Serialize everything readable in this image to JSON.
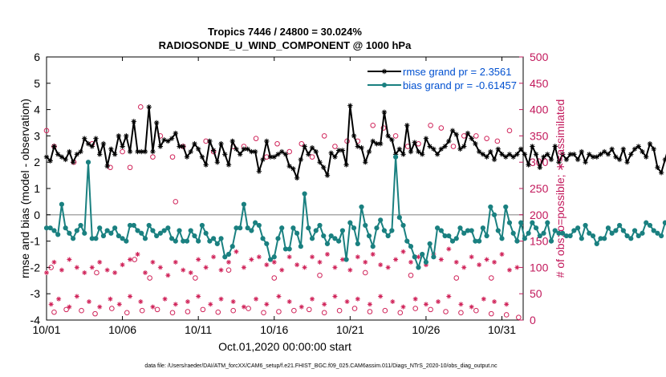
{
  "chart_data": {
    "type": "line",
    "title": "Tropics 7446 / 24800 = 30.024%",
    "subtitle": "RADIOSONDE_U_WIND_COMPONENT @ 1000 hPa",
    "xlabel": "Oct.01,2020 00:00:00 start",
    "ylabel": "rmse and bias (model - observation)",
    "ylabel_right": "# of obs: o=possible; ∗=assimilated",
    "footer": "data file: /Users/raeder/DAI/ATM_forcXX/CAM6_setup/f.e21.FHIST_BGC.f09_025.CAM6assim.011/Diags_NTrS_2020-10/obs_diag_output.nc",
    "xlim": [
      1,
      32.4
    ],
    "ylim": [
      -4,
      6
    ],
    "ylim_right": [
      0,
      500
    ],
    "x_ticks": [
      1,
      6,
      11,
      16,
      21,
      26,
      31
    ],
    "x_tick_labels": [
      "10/01",
      "10/06",
      "10/11",
      "10/16",
      "10/21",
      "10/26",
      "10/31"
    ],
    "y_ticks": [
      -4,
      -3,
      -2,
      -1,
      0,
      1,
      2,
      3,
      4,
      5,
      6
    ],
    "y_tick_labels": [
      "-4",
      "-3",
      "-2",
      "-1",
      "0",
      "1",
      "2",
      "3",
      "4",
      "5",
      "6"
    ],
    "y_ticks_right": [
      0,
      50,
      100,
      150,
      200,
      250,
      300,
      350,
      400,
      450,
      500
    ],
    "y_tick_labels_right": [
      "0",
      "50",
      "100",
      "150",
      "200",
      "250",
      "300",
      "350",
      "400",
      "450",
      "500"
    ],
    "zero_line": 0,
    "legend_position": "top-right",
    "x_start": 1,
    "x_step": 0.25,
    "series": [
      {
        "name": "rmse grand pr = 2.3561",
        "color": "#000000",
        "values": [
          2.2,
          2.05,
          2.6,
          2.3,
          2.2,
          2.1,
          2.4,
          2.0,
          2.3,
          2.4,
          2.9,
          2.7,
          2.6,
          2.9,
          2.3,
          2.7,
          1.85,
          2.5,
          2.3,
          3.0,
          2.6,
          3.0,
          2.4,
          3.55,
          2.4,
          2.4,
          2.4,
          4.1,
          2.4,
          3.5,
          2.6,
          2.85,
          2.8,
          2.9,
          3.1,
          2.6,
          2.6,
          2.2,
          2.4,
          2.7,
          2.5,
          2.2,
          1.9,
          2.8,
          2.45,
          2.0,
          2.7,
          2.3,
          1.9,
          2.8,
          2.5,
          2.3,
          2.5,
          2.5,
          2.4,
          2.4,
          1.65,
          2.1,
          2.8,
          2.2,
          2.2,
          2.3,
          2.4,
          2.3,
          1.85,
          1.75,
          1.4,
          2.1,
          2.6,
          2.3,
          2.55,
          2.4,
          2.0,
          1.8,
          1.5,
          2.35,
          2.2,
          2.45,
          2.45,
          1.9,
          4.15,
          3.0,
          2.6,
          2.55,
          2.0,
          2.4,
          2.8,
          2.7,
          2.7,
          3.9,
          3.0,
          2.85,
          2.3,
          2.5,
          2.3,
          3.4,
          2.4,
          2.75,
          2.4,
          2.3,
          2.9,
          2.6,
          2.5,
          2.3,
          2.5,
          2.6,
          2.8,
          3.2,
          3.05,
          2.5,
          2.6,
          3.1,
          2.9,
          2.7,
          2.4,
          2.3,
          2.2,
          2.4,
          2.1,
          2.5,
          2.3,
          2.2,
          2.3,
          2.2,
          2.3,
          2.5,
          2.3,
          1.9,
          2.6,
          2.3,
          1.8,
          2.2,
          2.3,
          2.1,
          2.6,
          2.0,
          2.3,
          2.1,
          2.3,
          2.3,
          2.1,
          2.4,
          2.0,
          2.3,
          2.2,
          2.2,
          2.3,
          2.4,
          2.3,
          2.5,
          2.2,
          2.1,
          2.5,
          2.0,
          2.3,
          2.5,
          2.6,
          2.4,
          2.2,
          2.7,
          2.5,
          1.8,
          1.6,
          2.1,
          2.6,
          2.5,
          1.9,
          2.7,
          2.3,
          4.0,
          2.3,
          2.2,
          2.3,
          2.0,
          1.7,
          2.3,
          2.2,
          2.5,
          2.1,
          3.9,
          2.5,
          2.8,
          2.9,
          3.1,
          2.3,
          3.6,
          2.5,
          2.2,
          2.6,
          2.4,
          4.5,
          2.9,
          3.2,
          2.1,
          2.05,
          2.0,
          2.0,
          2.0,
          1.7,
          2.1,
          2.1,
          2.3,
          2.0,
          2.0,
          2.2,
          2.1,
          2.3,
          1.9,
          2.1,
          2.2,
          2.2,
          2.2,
          2.2,
          2.3,
          2.3,
          2.0,
          2.2,
          2.0,
          1.9,
          2.2,
          2.1,
          2.3,
          2.4,
          2.5,
          2.4,
          2.4,
          2.2,
          2.2,
          2.1,
          1.8
        ]
      },
      {
        "name": "bias grand pr = -0.61457",
        "color": "#1a8080",
        "values": [
          -0.5,
          -0.5,
          -0.6,
          -0.75,
          0.4,
          -0.5,
          -0.7,
          -0.9,
          -0.6,
          -0.4,
          -0.7,
          2.0,
          -0.9,
          -0.9,
          -0.5,
          -0.8,
          -0.6,
          -0.7,
          -0.5,
          -0.8,
          -0.9,
          -1.0,
          -0.4,
          -0.4,
          -0.6,
          -0.7,
          -0.9,
          -0.4,
          -0.6,
          -0.8,
          -0.7,
          -0.6,
          -0.5,
          -0.9,
          -1.0,
          -0.6,
          -1.0,
          -1.0,
          -0.6,
          -0.8,
          -1.0,
          -0.4,
          -0.7,
          -1.0,
          -0.9,
          -1.1,
          -0.9,
          -1.6,
          -1.5,
          -1.2,
          -0.5,
          -0.5,
          0.4,
          -0.5,
          -0.6,
          -0.3,
          -0.4,
          -0.9,
          -1.1,
          -1.7,
          -1.6,
          -0.9,
          -0.5,
          -1.3,
          -1.3,
          -0.5,
          -0.7,
          -1.2,
          0.8,
          -0.5,
          -0.9,
          -0.6,
          -0.4,
          -0.8,
          -1.1,
          -0.8,
          -0.9,
          -1.0,
          -0.6,
          -1.7,
          -0.3,
          -0.5,
          -1.1,
          0.3,
          -0.4,
          -0.8,
          -1.2,
          -0.5,
          -0.2,
          -0.6,
          -0.8,
          -0.6,
          2.2,
          -0.1,
          -0.4,
          -1.0,
          -1.2,
          -1.6,
          -2.0,
          -1.5,
          -1.8,
          -1.1,
          -1.6,
          -0.5,
          -0.6,
          -0.8,
          -0.8,
          -1.0,
          -0.9,
          -0.5,
          -0.7,
          -0.6,
          -0.6,
          -1.0,
          -1.0,
          -0.5,
          -0.8,
          0.3,
          0.0,
          -0.6,
          -0.9,
          0.3,
          -0.3,
          -0.7,
          -1.0,
          -0.3,
          -0.9,
          -0.7,
          -0.3,
          -0.5,
          -0.8,
          -0.7,
          -0.3,
          -1.0,
          -0.6,
          -0.7,
          -0.7,
          -0.8,
          -0.8,
          -0.6,
          -0.5,
          -0.9,
          -0.4,
          -0.7,
          -0.8,
          -1.1,
          -0.9,
          -0.9,
          -0.5,
          -0.7,
          -0.6,
          -0.4,
          -0.6,
          -0.8,
          -0.9,
          -0.6,
          -0.8,
          -0.7,
          -0.3,
          -0.4,
          -0.6,
          -0.7,
          -0.8,
          -0.3,
          -0.5,
          -0.2,
          -0.9,
          -0.5,
          -0.8,
          0.1,
          0.1,
          0.0,
          -0.4,
          -0.6,
          -0.4,
          -0.3,
          -1.0,
          -0.5,
          0.1,
          -0.3,
          -1.0,
          -1.5,
          -0.7,
          -0.5,
          -0.6,
          -0.3,
          -0.4,
          -0.6,
          -0.9,
          -0.7,
          -0.6,
          1.2,
          -0.6,
          -1.0,
          -1.2,
          -0.8,
          -0.4,
          -0.6,
          -0.9,
          -0.4,
          -0.5,
          -0.1,
          -0.2,
          -0.9,
          -0.5,
          -0.5,
          -0.4,
          -0.6,
          -0.8,
          -0.7,
          -0.4,
          -0.5,
          -0.5,
          -0.5,
          -0.8,
          -0.3,
          -0.5,
          -0.4,
          -0.8,
          -0.7,
          -0.5,
          0.1,
          -0.7,
          -0.8,
          -0.8,
          -0.2,
          -0.2,
          -0.2,
          -0.3,
          1.5,
          -0.6,
          -0.6,
          -0.8,
          -0.5,
          -0.5,
          0.3
        ]
      },
      {
        "name": "possible obs (upper band)",
        "marker": "o",
        "color": "#d0245a",
        "x": [
          1.0,
          1.5,
          2.8,
          4.0,
          5.2,
          6.0,
          6.5,
          7.2,
          8.0,
          8.5,
          9.3,
          10.0,
          11.5,
          12.0,
          13.3,
          14.0,
          14.8,
          15.5,
          16.2,
          17.0,
          17.8,
          18.5,
          19.3,
          20.0,
          20.8,
          21.5,
          22.5,
          23.2,
          24.0,
          24.8,
          25.5,
          26.3,
          27.0,
          27.8,
          28.5,
          29.3,
          30.0,
          30.7,
          31.5
        ],
        "values": [
          360,
          330,
          300,
          335,
          290,
          320,
          290,
          405,
          310,
          350,
          310,
          330,
          340,
          320,
          330,
          330,
          345,
          310,
          335,
          320,
          335,
          310,
          350,
          330,
          340,
          340,
          370,
          365,
          350,
          330,
          335,
          370,
          365,
          330,
          350,
          350,
          345,
          340,
          360
        ]
      },
      {
        "name": "possible obs (mid band)",
        "marker": "o",
        "color": "#d0245a",
        "x": [
          1.3,
          4.3,
          6.8,
          7.8,
          9.5,
          10.8,
          13.0,
          16.0,
          19.0,
          22.0,
          25.0,
          28.0,
          30.3
        ],
        "values": [
          100,
          90,
          115,
          80,
          225,
          80,
          95,
          80,
          85,
          90,
          85,
          80,
          80
        ]
      },
      {
        "name": "possible obs (lower band)",
        "marker": "o",
        "color": "#d0245a",
        "x": [
          1.5,
          2.3,
          3.3,
          4.2,
          5.3,
          6.3,
          7.3,
          8.3,
          9.3,
          10.3,
          11.3,
          12.3,
          13.3,
          14.3,
          15.3,
          16.3,
          17.3,
          18.3,
          19.3,
          20.3,
          21.3,
          22.3,
          23.3,
          24.3,
          25.3,
          26.3,
          27.3,
          28.3,
          29.3,
          30.3,
          31.3,
          32.1
        ],
        "values": [
          15,
          20,
          18,
          12,
          22,
          14,
          18,
          20,
          14,
          16,
          20,
          15,
          18,
          22,
          14,
          16,
          18,
          20,
          14,
          18,
          22,
          16,
          18,
          14,
          22,
          20,
          16,
          14,
          18,
          12,
          10,
          5
        ]
      },
      {
        "name": "assimilated obs (mid band)",
        "marker": "*",
        "color": "#d0245a",
        "x": [
          1.0,
          1.5,
          2.0,
          2.5,
          3.0,
          3.5,
          4.0,
          4.5,
          5.0,
          5.5,
          6.0,
          6.5,
          7.0,
          7.5,
          8.0,
          8.5,
          9.0,
          9.5,
          10.0,
          10.5,
          11.0,
          11.5,
          12.0,
          12.5,
          13.0,
          13.5,
          14.0,
          14.5,
          15.0,
          15.5,
          16.0,
          16.5,
          17.0,
          17.5,
          18.0,
          18.5,
          19.0,
          19.5,
          20.0,
          20.5,
          21.0,
          21.5,
          22.0,
          22.5,
          23.0,
          23.5,
          24.0,
          24.5,
          25.0,
          25.5,
          26.0,
          26.5,
          27.0,
          27.5,
          28.0,
          28.5,
          29.0,
          29.5,
          30.0,
          30.5,
          31.0,
          31.5,
          32.0
        ],
        "values": [
          90,
          110,
          95,
          115,
          100,
          90,
          100,
          110,
          95,
          90,
          105,
          115,
          125,
          90,
          110,
          100,
          85,
          110,
          95,
          90,
          115,
          100,
          120,
          95,
          110,
          130,
          100,
          115,
          120,
          105,
          110,
          95,
          120,
          105,
          100,
          120,
          110,
          125,
          100,
          115,
          95,
          120,
          110,
          125,
          105,
          100,
          115,
          130,
          110,
          120,
          105,
          125,
          115,
          135,
          110,
          100,
          120,
          105,
          115,
          110,
          125,
          95,
          100
        ]
      },
      {
        "name": "assimilated obs (lower band)",
        "marker": "*",
        "color": "#d0245a",
        "x": [
          1.3,
          1.8,
          2.5,
          3.0,
          3.8,
          4.5,
          5.2,
          5.8,
          6.5,
          7.2,
          8.0,
          8.8,
          9.5,
          10.3,
          11.0,
          11.8,
          12.5,
          13.3,
          14.0,
          14.8,
          15.5,
          16.3,
          17.0,
          17.8,
          18.5,
          19.3,
          20.0,
          20.8,
          21.5,
          22.3,
          23.0,
          23.8,
          24.5,
          25.3,
          26.0,
          26.8,
          27.5,
          28.3,
          29.0,
          29.8,
          30.5,
          31.3
        ],
        "values": [
          30,
          40,
          25,
          45,
          35,
          25,
          40,
          30,
          45,
          35,
          25,
          40,
          30,
          35,
          45,
          30,
          40,
          35,
          25,
          40,
          30,
          45,
          35,
          25,
          40,
          30,
          45,
          35,
          40,
          30,
          45,
          35,
          25,
          40,
          30,
          35,
          45,
          30,
          25,
          40,
          35,
          30
        ]
      }
    ]
  }
}
